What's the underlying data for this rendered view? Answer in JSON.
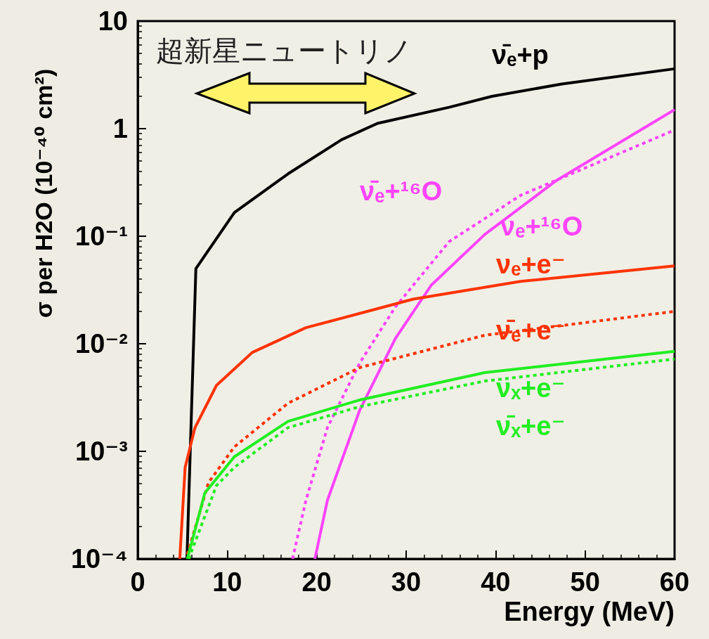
{
  "chart_data": {
    "type": "line",
    "xlabel": "Energy (MeV)",
    "ylabel": "σ per H2O (10⁻⁴⁰ cm²)",
    "annotations": [
      "超新星ニュートリノ"
    ],
    "xlim": [
      0,
      60
    ],
    "xticks": [
      0,
      10,
      20,
      30,
      40,
      50,
      60
    ],
    "ylim": [
      0.0001,
      10
    ],
    "yticks": [
      {
        "value": 0.0001,
        "label": "10⁻⁴"
      },
      {
        "value": 0.001,
        "label": "10⁻³"
      },
      {
        "value": 0.01,
        "label": "10⁻²"
      },
      {
        "value": 0.1,
        "label": "10⁻¹"
      },
      1,
      10
    ],
    "log": "y",
    "grid": false,
    "legend": false,
    "marker": "none",
    "series": [
      {
        "name": "ν̄ₑ+p",
        "color": "#000000",
        "line_style": "solid",
        "x": [
          5.5,
          6.5,
          10.8,
          16.8,
          22.8,
          26.8,
          34.8,
          39.6,
          47.4,
          60
        ],
        "values": [
          0.0001,
          0.05,
          0.166,
          0.38,
          0.79,
          1.12,
          1.58,
          2.0,
          2.6,
          3.6
        ]
      },
      {
        "name": "ν̄ₑ+¹⁶O",
        "color": "#ff44ff",
        "line_style": "dotted",
        "x": [
          17.3,
          18.8,
          21.2,
          24.8,
          28.8,
          34.8,
          42.8,
          60
        ],
        "values": [
          0.0001,
          0.00035,
          0.00166,
          0.0066,
          0.022,
          0.089,
          0.24,
          0.97
        ]
      },
      {
        "name": "νₑ+¹⁶O",
        "color": "#ff44ff",
        "line_style": "solid",
        "x": [
          19.8,
          21.2,
          24.8,
          28.8,
          32.8,
          38.8,
          46.8,
          60
        ],
        "values": [
          0.0001,
          0.00035,
          0.0024,
          0.0112,
          0.035,
          0.104,
          0.33,
          1.5
        ]
      },
      {
        "name": "νₑ+e⁻",
        "color": "#ff3300",
        "line_style": "solid",
        "x": [
          4.7,
          5.3,
          6.4,
          8.8,
          12.8,
          18.8,
          30.8,
          42.8,
          60
        ],
        "values": [
          0.0001,
          0.00071,
          0.00166,
          0.0041,
          0.0083,
          0.0141,
          0.026,
          0.038,
          0.053
        ]
      },
      {
        "name": "ν̄ₑ+e⁻",
        "color": "#ff3300",
        "line_style": "dotted",
        "x": [
          5.55,
          7.9,
          10.8,
          16.8,
          24.8,
          38.8,
          60
        ],
        "values": [
          0.00011,
          0.00051,
          0.0011,
          0.0028,
          0.006,
          0.012,
          0.02
        ]
      },
      {
        "name": "νₓ+e⁻",
        "color": "#22ee22",
        "line_style": "solid",
        "x": [
          5.55,
          7.5,
          10.8,
          16.8,
          24.8,
          38.8,
          60
        ],
        "values": [
          0.0001,
          0.00041,
          0.00089,
          0.0019,
          0.003,
          0.0054,
          0.0085
        ]
      },
      {
        "name": "ν̄ₓ+e⁻",
        "color": "#22ee22",
        "line_style": "dotted",
        "x": [
          5.7,
          8.8,
          10.8,
          16.8,
          24.8,
          38.8,
          60
        ],
        "values": [
          0.0001,
          0.00048,
          0.00071,
          0.00166,
          0.0026,
          0.0045,
          0.0072
        ]
      }
    ]
  }
}
